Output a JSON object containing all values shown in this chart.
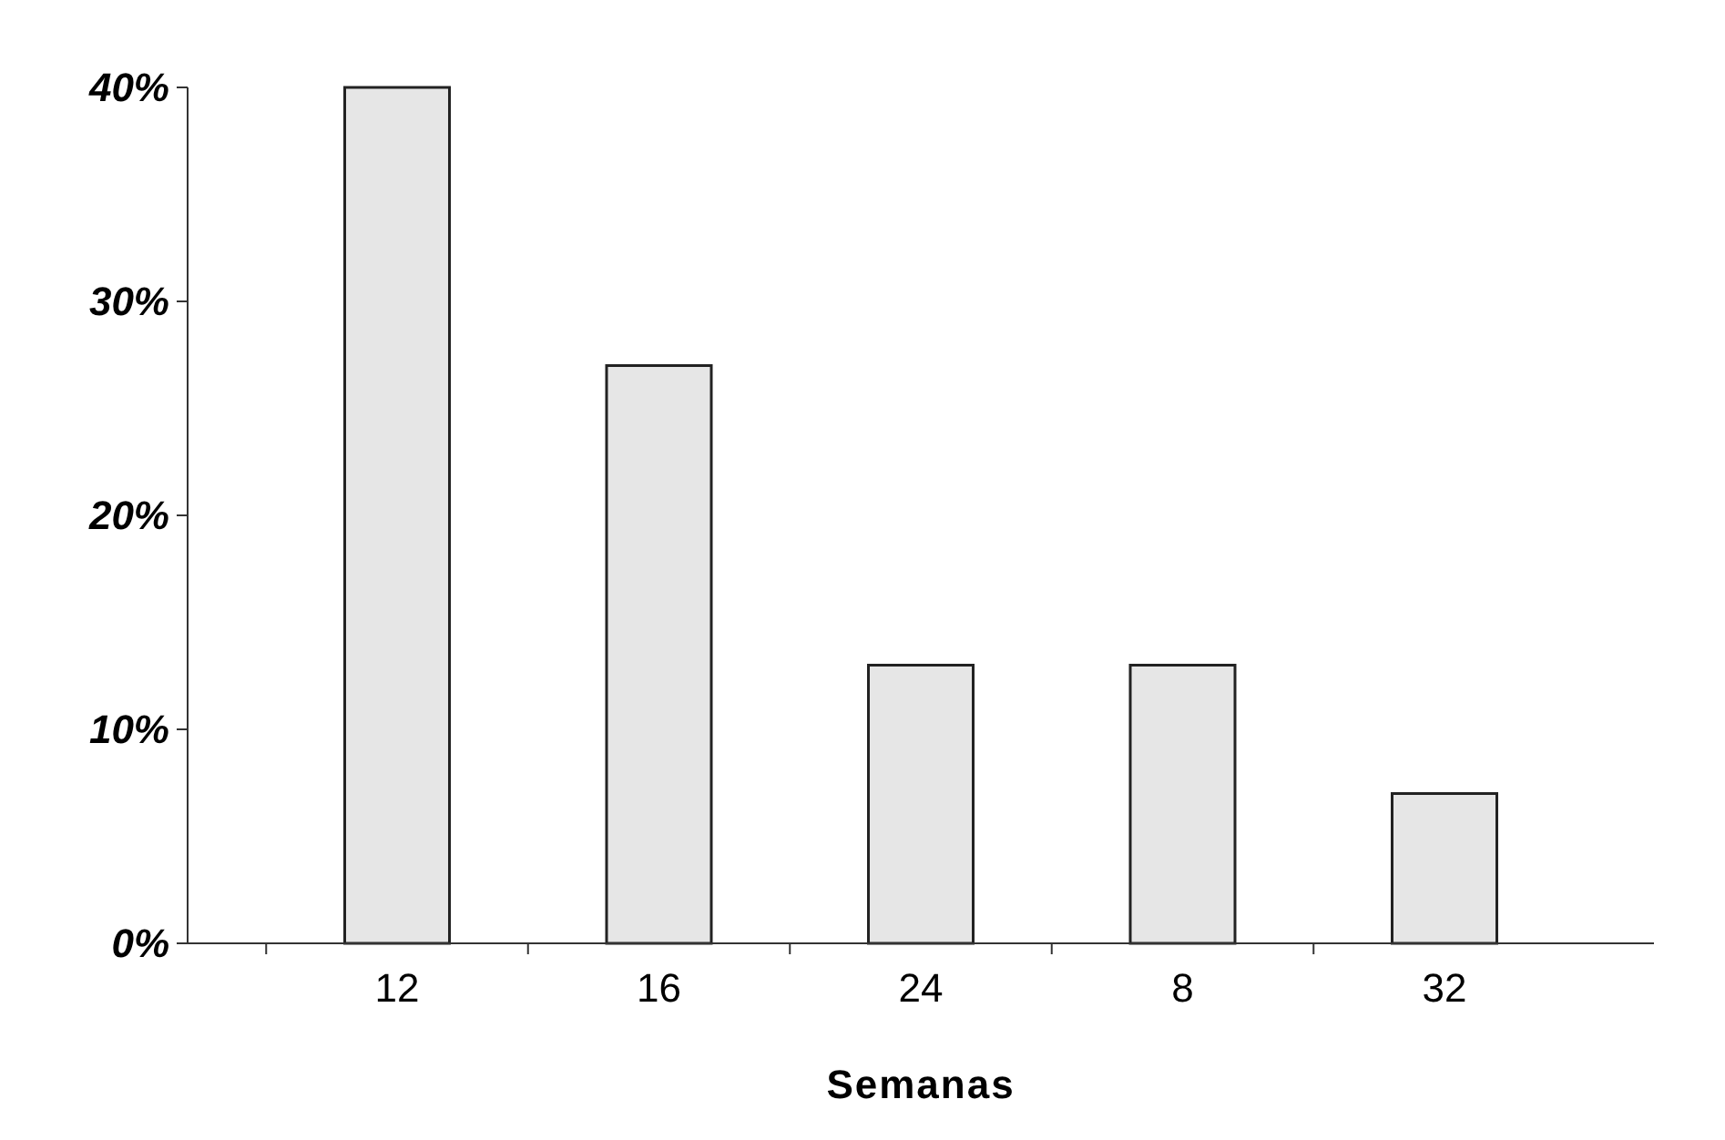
{
  "chart_data": {
    "type": "bar",
    "xlabel": "Semanas",
    "categories": [
      "12",
      "16",
      "24",
      "8",
      "32"
    ],
    "values": [
      40,
      27,
      13,
      13,
      7
    ],
    "color": "#e6e6e6",
    "ylim": [
      0,
      40
    ],
    "yticks": [
      {
        "value": 0,
        "label": "0%"
      },
      {
        "value": 10,
        "label": "10%"
      },
      {
        "value": 20,
        "label": "20%"
      },
      {
        "value": 30,
        "label": "30%"
      },
      {
        "value": 40,
        "label": "40%"
      }
    ],
    "grid": false
  }
}
